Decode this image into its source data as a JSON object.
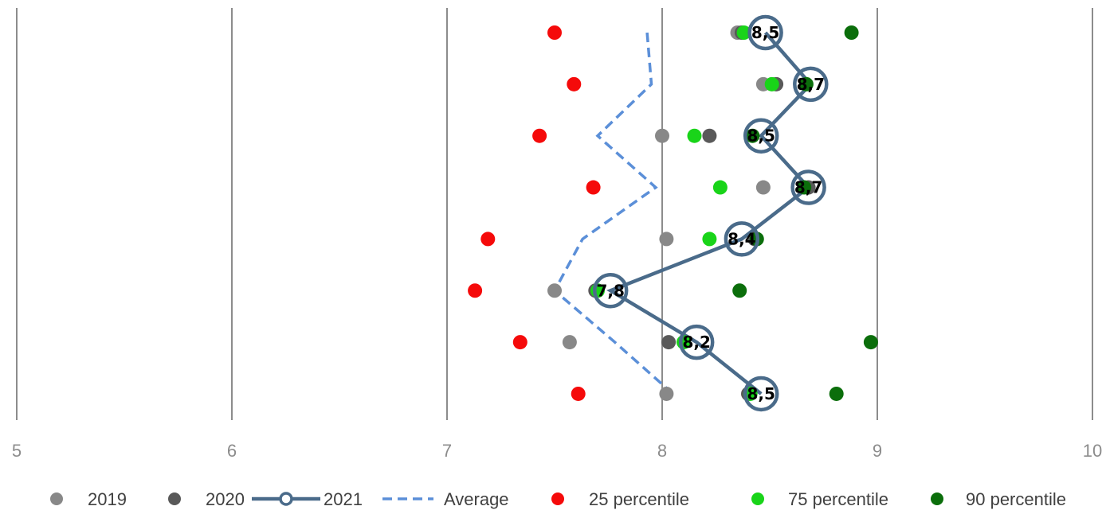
{
  "chart_data": {
    "type": "scatter",
    "title": "",
    "xlabel": "",
    "ylabel": "",
    "xlim": [
      5,
      10
    ],
    "x_ticks": [
      "5",
      "6",
      "7",
      "8",
      "9",
      "10"
    ],
    "rows": 8,
    "grid": "vertical",
    "legend": "bottom",
    "series": [
      {
        "name": "2019",
        "kind": "marker",
        "color": "#888888",
        "values": [
          8.35,
          8.47,
          8.0,
          8.47,
          8.02,
          7.5,
          7.57,
          8.02
        ]
      },
      {
        "name": "2020",
        "kind": "marker",
        "color": "#595959",
        "values": [
          8.37,
          8.53,
          8.22,
          8.68,
          8.43,
          7.69,
          8.03,
          8.4
        ]
      },
      {
        "name": "2021",
        "kind": "line-marker",
        "color": "#4a6b8a",
        "values": [
          8.48,
          8.69,
          8.46,
          8.68,
          8.37,
          7.76,
          8.16,
          8.46
        ],
        "labels": [
          "8,5",
          "8,7",
          "8,5",
          "8,7",
          "8,4",
          "7,8",
          "8,2",
          "8,5"
        ]
      },
      {
        "name": "Average",
        "kind": "dashed-line",
        "color": "#5b8fd8",
        "values": [
          7.93,
          7.95,
          7.7,
          7.97,
          7.63,
          7.5,
          7.78,
          8.05
        ]
      },
      {
        "name": "25 percentile",
        "kind": "marker",
        "color": "#f50a0a",
        "values": [
          7.5,
          7.59,
          7.43,
          7.68,
          7.19,
          7.13,
          7.34,
          7.61
        ]
      },
      {
        "name": "75 percentile",
        "kind": "marker",
        "color": "#19d419",
        "values": [
          8.38,
          8.51,
          8.15,
          8.27,
          8.22,
          7.7,
          8.1,
          8.41
        ]
      },
      {
        "name": "90 percentile",
        "kind": "marker",
        "color": "#0b6e0b",
        "values": [
          8.88,
          8.67,
          8.42,
          8.66,
          8.44,
          8.36,
          8.97,
          8.81
        ]
      }
    ]
  }
}
